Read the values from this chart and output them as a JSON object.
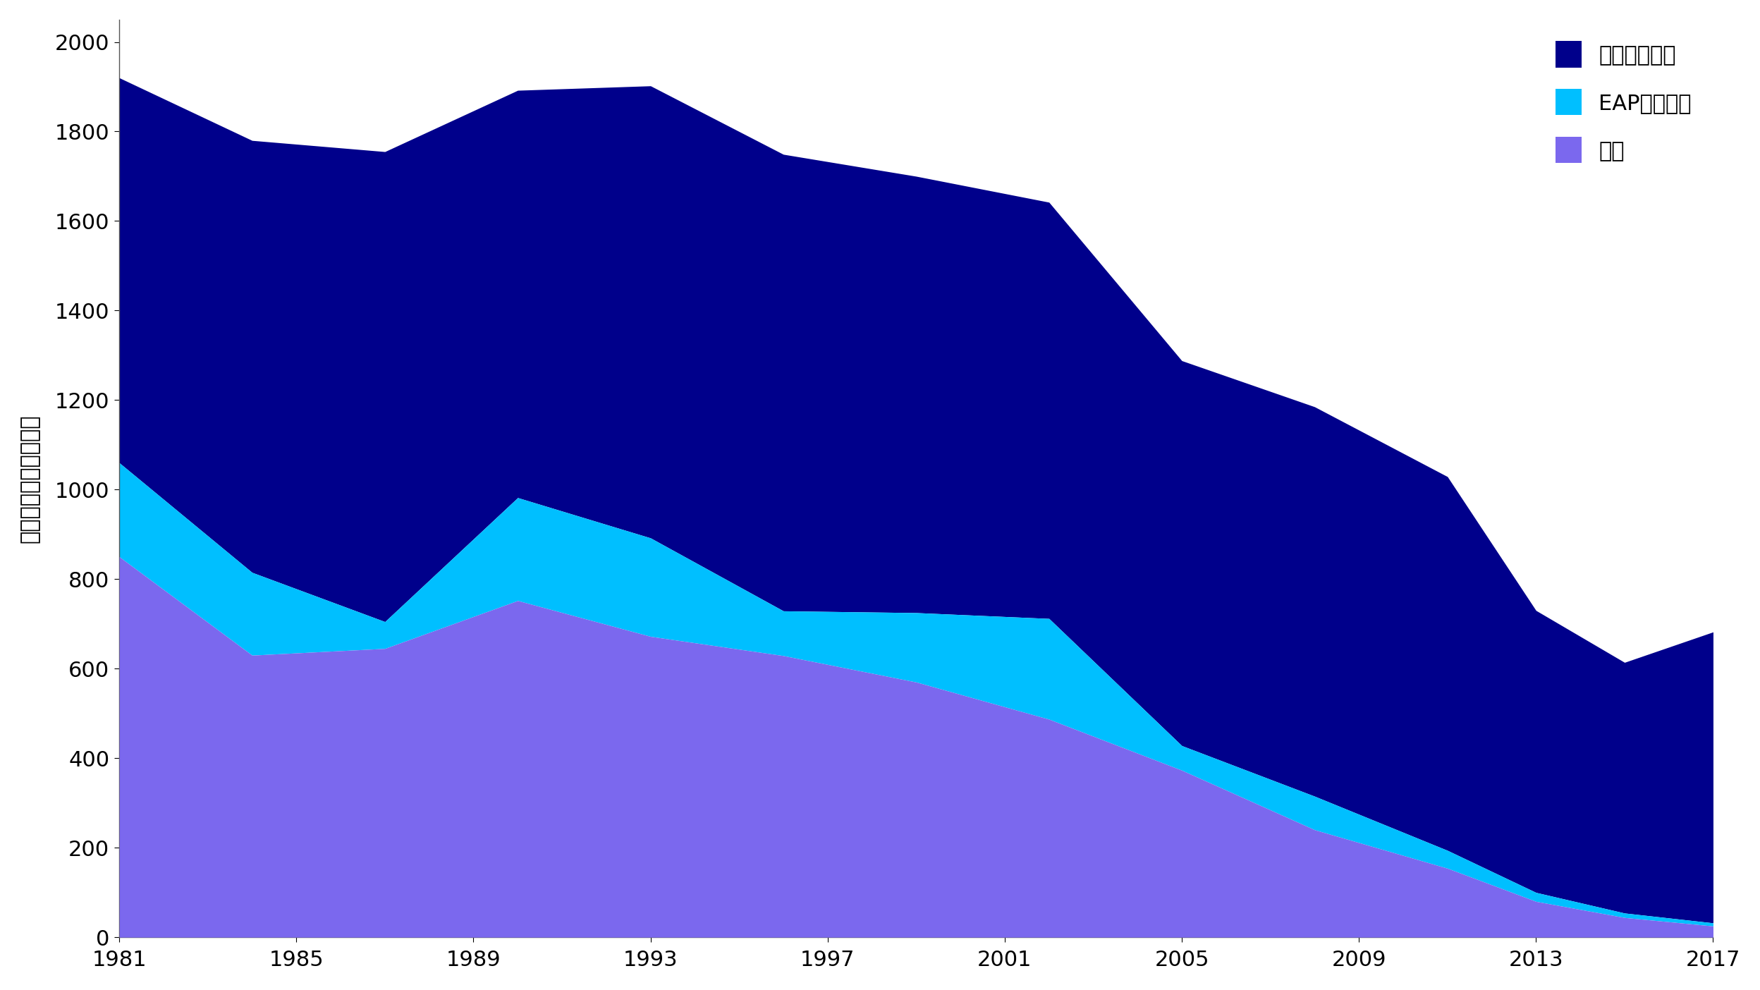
{
  "years": [
    1981,
    1984,
    1987,
    1990,
    1993,
    1996,
    1999,
    2002,
    2005,
    2008,
    2011,
    2013,
    2015,
    2017
  ],
  "china": [
    850,
    630,
    645,
    752,
    672,
    629,
    570,
    487,
    373,
    240,
    154,
    80,
    44,
    25
  ],
  "eap_other": [
    210,
    185,
    60,
    230,
    220,
    100,
    155,
    225,
    55,
    75,
    40,
    20,
    10,
    7
  ],
  "global_other": [
    860,
    965,
    1050,
    910,
    1010,
    1020,
    975,
    930,
    860,
    870,
    835,
    630,
    560,
    650
  ],
  "colors": {
    "china": "#7B68EE",
    "eap_other": "#00BFFF",
    "global_other": "#00008B"
  },
  "legend_labels": [
    "全球其他地方",
    "EAP其他地方",
    "中國"
  ],
  "ylabel": "極度貧困人口（百萬）",
  "ylim": [
    0,
    2050
  ],
  "yticks": [
    0,
    200,
    400,
    600,
    800,
    1000,
    1200,
    1400,
    1600,
    1800,
    2000
  ],
  "xticks": [
    1981,
    1985,
    1989,
    1993,
    1997,
    2001,
    2005,
    2009,
    2013,
    2017
  ],
  "background_color": "#FFFFFF",
  "label_fontsize": 22,
  "tick_fontsize": 22,
  "legend_fontsize": 22
}
